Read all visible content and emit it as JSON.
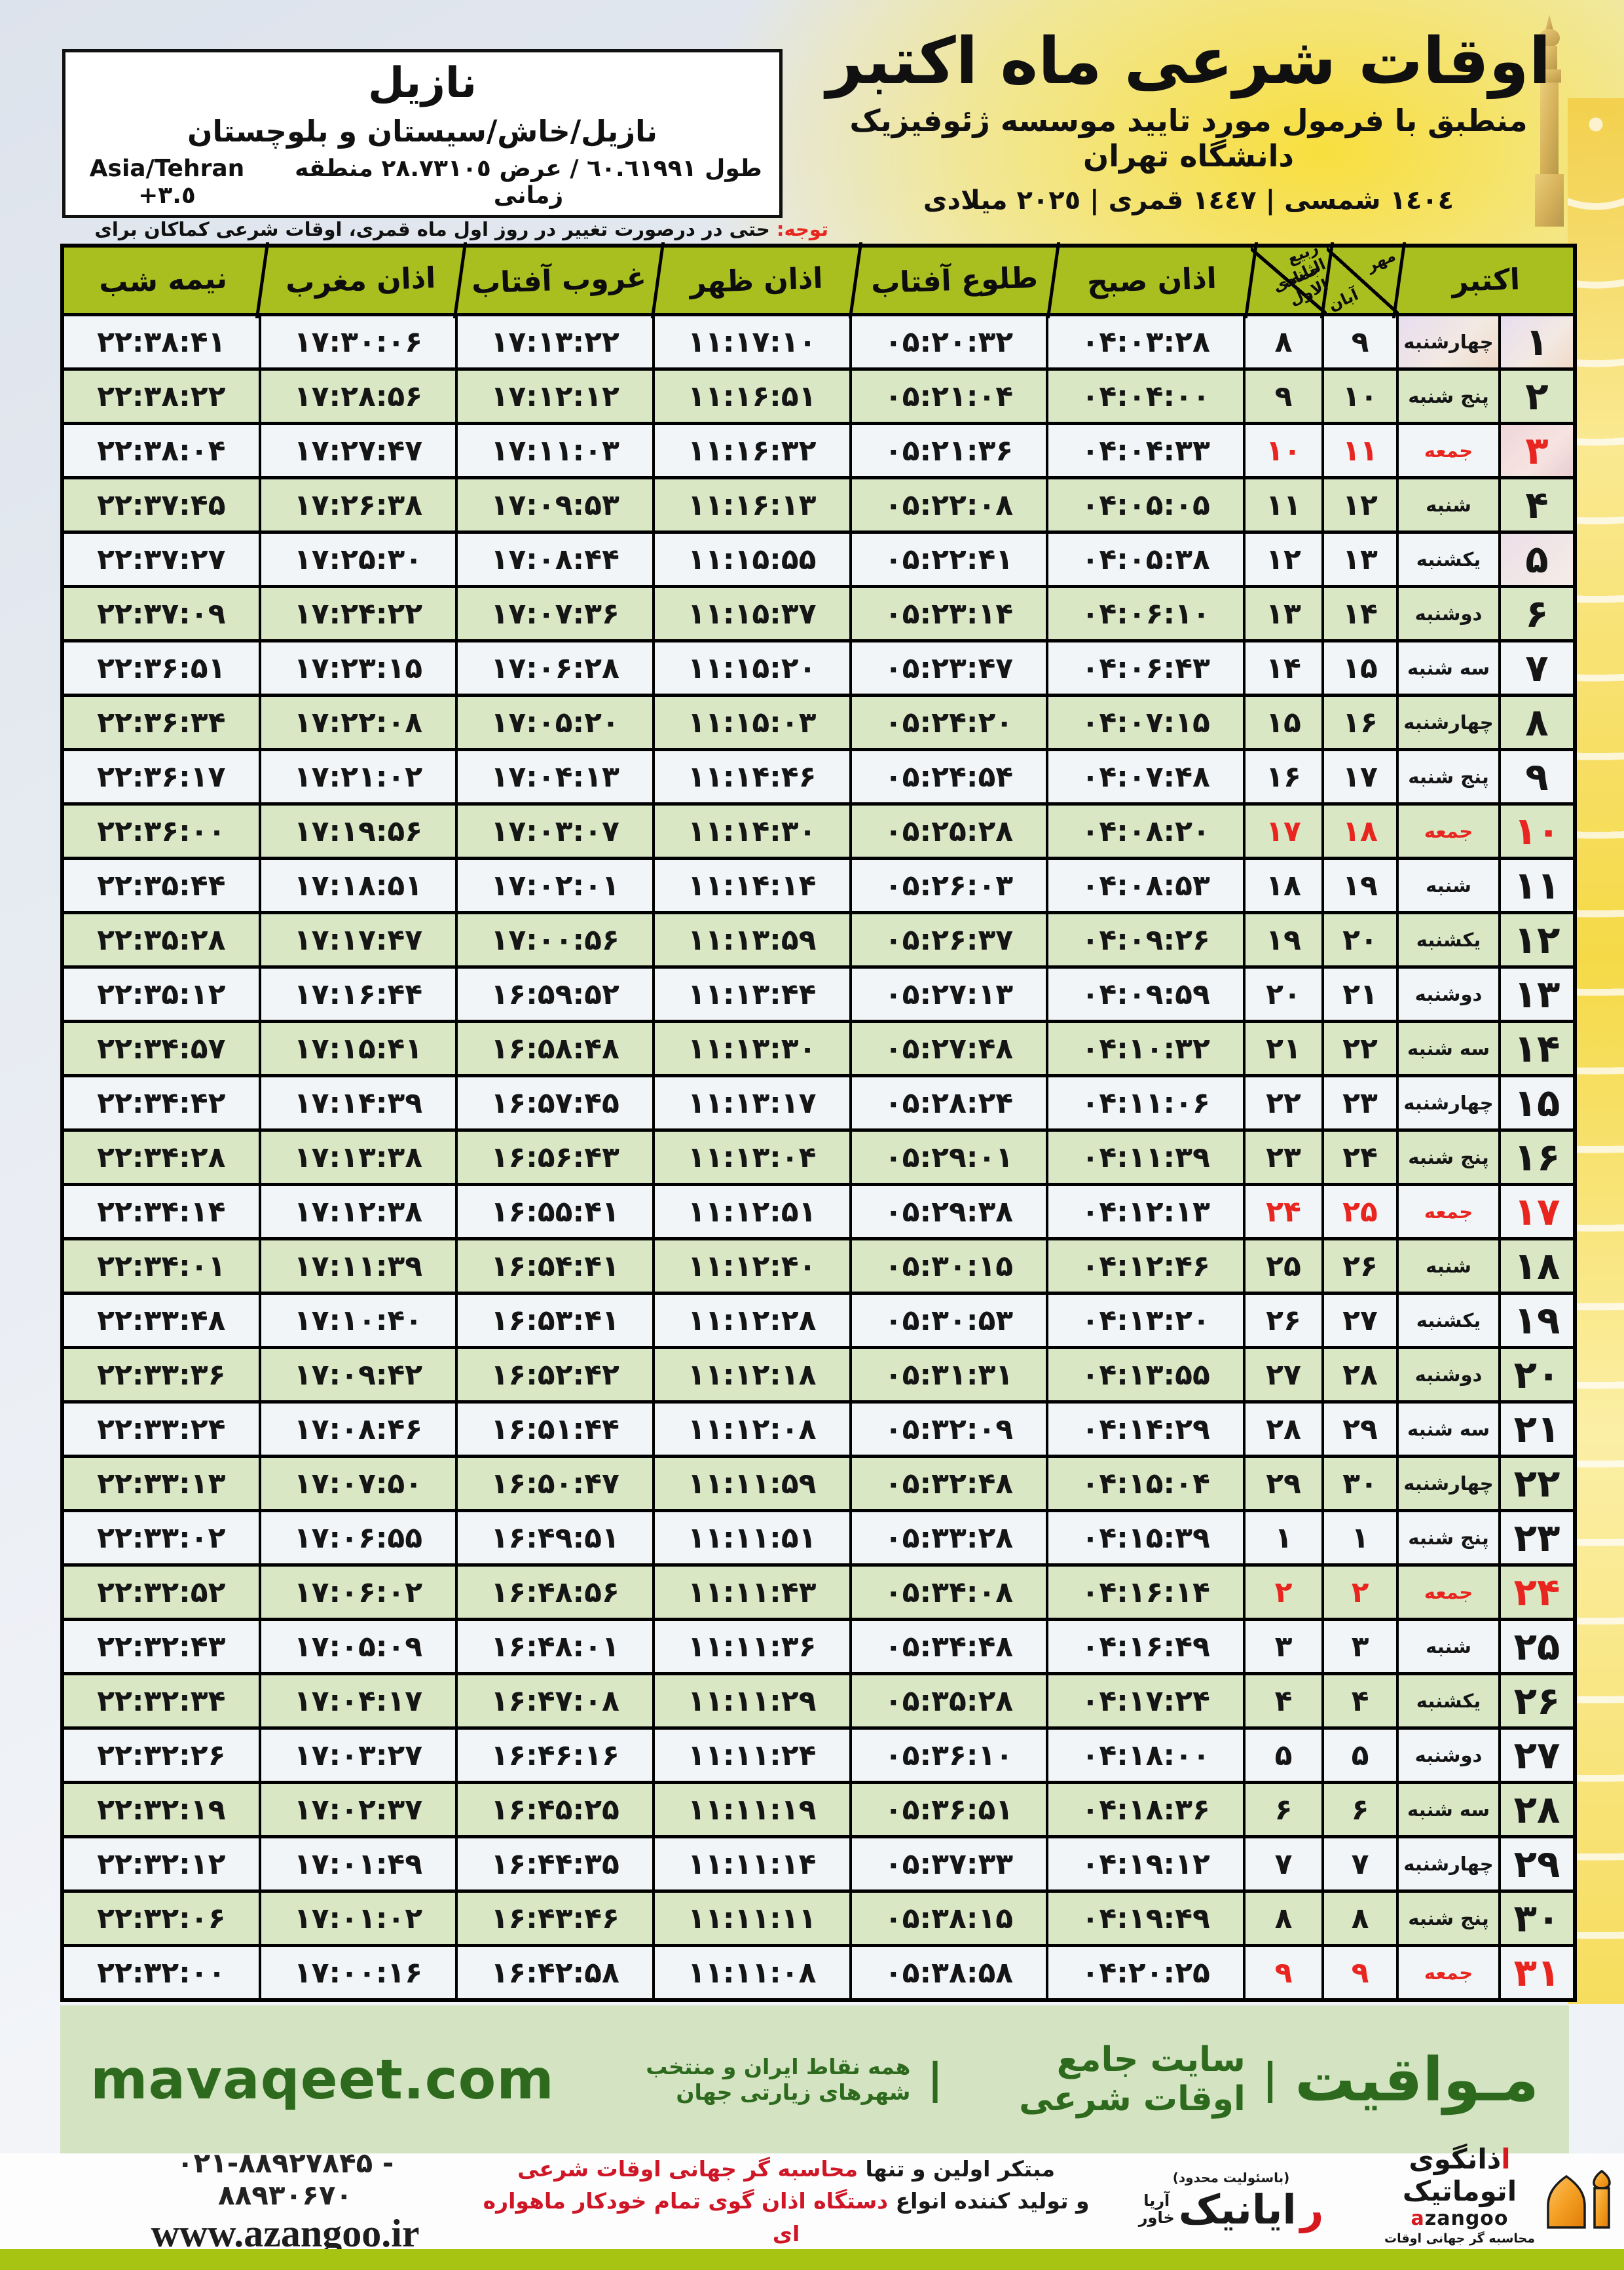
{
  "header": {
    "title": "اوقات شرعی ماه اکتبر",
    "subtitle": "منطبق با فرمول مورد تایید موسسه ژئوفیزیک دانشگاه تهران",
    "date_line": "١٤٠٤ شمسی | ١٤٤٧ قمری | ٢٠٢٥ میلادی"
  },
  "location_box": {
    "city": "نازیل",
    "region": "نازیل/خاش/سیستان و بلوچستان",
    "coords_fa": "طول ٦٠.٦١٩٩١ / عرض ٢٨.٧٣١٠٥ منطقه زمانی",
    "coords_tz": "Asia/Tehran +٣.٥"
  },
  "note": {
    "label": "توجه:",
    "text": " حتی در درصورت تغییر در روز اول ماه قمری، اوقات شرعی کماکان برای روزهای شمسی و میلادی معتبر است."
  },
  "table": {
    "headers": {
      "october": "اکتبر",
      "jalali_top": "مهر",
      "jalali_bottom": "آبان",
      "hijri_top": "ربیع الثانی",
      "hijri_bottom": "جمادی الاول",
      "fajr": "اذان صبح",
      "sunrise": "طلوع آفتاب",
      "dhuhr": "اذان ظهر",
      "sunset": "غروب آفتاب",
      "maghrib": "اذان مغرب",
      "midnight": "نیمه شب"
    },
    "rows": [
      {
        "day": "۱",
        "weekday": "چهارشنبه",
        "jalali": "۹",
        "hijri": "۸",
        "fajr": "۰۴:۰۳:۲۸",
        "sunrise": "۰۵:۲۰:۳۲",
        "dhuhr": "۱۱:۱۷:۱۰",
        "sunset": "۱۷:۱۳:۲۲",
        "maghrib": "۱۷:۳۰:۰۶",
        "midnight": "۲۲:۳۸:۴۱",
        "friday": false
      },
      {
        "day": "۲",
        "weekday": "پنج شنبه",
        "jalali": "۱۰",
        "hijri": "۹",
        "fajr": "۰۴:۰۴:۰۰",
        "sunrise": "۰۵:۲۱:۰۴",
        "dhuhr": "۱۱:۱۶:۵۱",
        "sunset": "۱۷:۱۲:۱۲",
        "maghrib": "۱۷:۲۸:۵۶",
        "midnight": "۲۲:۳۸:۲۲",
        "friday": false
      },
      {
        "day": "۳",
        "weekday": "جمعه",
        "jalali": "۱۱",
        "hijri": "۱۰",
        "fajr": "۰۴:۰۴:۳۳",
        "sunrise": "۰۵:۲۱:۳۶",
        "dhuhr": "۱۱:۱۶:۳۲",
        "sunset": "۱۷:۱۱:۰۳",
        "maghrib": "۱۷:۲۷:۴۷",
        "midnight": "۲۲:۳۸:۰۴",
        "friday": true
      },
      {
        "day": "۴",
        "weekday": "شنبه",
        "jalali": "۱۲",
        "hijri": "۱۱",
        "fajr": "۰۴:۰۵:۰۵",
        "sunrise": "۰۵:۲۲:۰۸",
        "dhuhr": "۱۱:۱۶:۱۳",
        "sunset": "۱۷:۰۹:۵۳",
        "maghrib": "۱۷:۲۶:۳۸",
        "midnight": "۲۲:۳۷:۴۵",
        "friday": false
      },
      {
        "day": "۵",
        "weekday": "یکشنبه",
        "jalali": "۱۳",
        "hijri": "۱۲",
        "fajr": "۰۴:۰۵:۳۸",
        "sunrise": "۰۵:۲۲:۴۱",
        "dhuhr": "۱۱:۱۵:۵۵",
        "sunset": "۱۷:۰۸:۴۴",
        "maghrib": "۱۷:۲۵:۳۰",
        "midnight": "۲۲:۳۷:۲۷",
        "friday": false
      },
      {
        "day": "۶",
        "weekday": "دوشنبه",
        "jalali": "۱۴",
        "hijri": "۱۳",
        "fajr": "۰۴:۰۶:۱۰",
        "sunrise": "۰۵:۲۳:۱۴",
        "dhuhr": "۱۱:۱۵:۳۷",
        "sunset": "۱۷:۰۷:۳۶",
        "maghrib": "۱۷:۲۴:۲۲",
        "midnight": "۲۲:۳۷:۰۹",
        "friday": false
      },
      {
        "day": "۷",
        "weekday": "سه شنبه",
        "jalali": "۱۵",
        "hijri": "۱۴",
        "fajr": "۰۴:۰۶:۴۳",
        "sunrise": "۰۵:۲۳:۴۷",
        "dhuhr": "۱۱:۱۵:۲۰",
        "sunset": "۱۷:۰۶:۲۸",
        "maghrib": "۱۷:۲۳:۱۵",
        "midnight": "۲۲:۳۶:۵۱",
        "friday": false
      },
      {
        "day": "۸",
        "weekday": "چهارشنبه",
        "jalali": "۱۶",
        "hijri": "۱۵",
        "fajr": "۰۴:۰۷:۱۵",
        "sunrise": "۰۵:۲۴:۲۰",
        "dhuhr": "۱۱:۱۵:۰۳",
        "sunset": "۱۷:۰۵:۲۰",
        "maghrib": "۱۷:۲۲:۰۸",
        "midnight": "۲۲:۳۶:۳۴",
        "friday": false
      },
      {
        "day": "۹",
        "weekday": "پنج شنبه",
        "jalali": "۱۷",
        "hijri": "۱۶",
        "fajr": "۰۴:۰۷:۴۸",
        "sunrise": "۰۵:۲۴:۵۴",
        "dhuhr": "۱۱:۱۴:۴۶",
        "sunset": "۱۷:۰۴:۱۳",
        "maghrib": "۱۷:۲۱:۰۲",
        "midnight": "۲۲:۳۶:۱۷",
        "friday": false
      },
      {
        "day": "۱۰",
        "weekday": "جمعه",
        "jalali": "۱۸",
        "hijri": "۱۷",
        "fajr": "۰۴:۰۸:۲۰",
        "sunrise": "۰۵:۲۵:۲۸",
        "dhuhr": "۱۱:۱۴:۳۰",
        "sunset": "۱۷:۰۳:۰۷",
        "maghrib": "۱۷:۱۹:۵۶",
        "midnight": "۲۲:۳۶:۰۰",
        "friday": true
      },
      {
        "day": "۱۱",
        "weekday": "شنبه",
        "jalali": "۱۹",
        "hijri": "۱۸",
        "fajr": "۰۴:۰۸:۵۳",
        "sunrise": "۰۵:۲۶:۰۳",
        "dhuhr": "۱۱:۱۴:۱۴",
        "sunset": "۱۷:۰۲:۰۱",
        "maghrib": "۱۷:۱۸:۵۱",
        "midnight": "۲۲:۳۵:۴۴",
        "friday": false
      },
      {
        "day": "۱۲",
        "weekday": "یکشنبه",
        "jalali": "۲۰",
        "hijri": "۱۹",
        "fajr": "۰۴:۰۹:۲۶",
        "sunrise": "۰۵:۲۶:۳۷",
        "dhuhr": "۱۱:۱۳:۵۹",
        "sunset": "۱۷:۰۰:۵۶",
        "maghrib": "۱۷:۱۷:۴۷",
        "midnight": "۲۲:۳۵:۲۸",
        "friday": false
      },
      {
        "day": "۱۳",
        "weekday": "دوشنبه",
        "jalali": "۲۱",
        "hijri": "۲۰",
        "fajr": "۰۴:۰۹:۵۹",
        "sunrise": "۰۵:۲۷:۱۳",
        "dhuhr": "۱۱:۱۳:۴۴",
        "sunset": "۱۶:۵۹:۵۲",
        "maghrib": "۱۷:۱۶:۴۴",
        "midnight": "۲۲:۳۵:۱۲",
        "friday": false
      },
      {
        "day": "۱۴",
        "weekday": "سه شنبه",
        "jalali": "۲۲",
        "hijri": "۲۱",
        "fajr": "۰۴:۱۰:۳۲",
        "sunrise": "۰۵:۲۷:۴۸",
        "dhuhr": "۱۱:۱۳:۳۰",
        "sunset": "۱۶:۵۸:۴۸",
        "maghrib": "۱۷:۱۵:۴۱",
        "midnight": "۲۲:۳۴:۵۷",
        "friday": false
      },
      {
        "day": "۱۵",
        "weekday": "چهارشنبه",
        "jalali": "۲۳",
        "hijri": "۲۲",
        "fajr": "۰۴:۱۱:۰۶",
        "sunrise": "۰۵:۲۸:۲۴",
        "dhuhr": "۱۱:۱۳:۱۷",
        "sunset": "۱۶:۵۷:۴۵",
        "maghrib": "۱۷:۱۴:۳۹",
        "midnight": "۲۲:۳۴:۴۲",
        "friday": false
      },
      {
        "day": "۱۶",
        "weekday": "پنج شنبه",
        "jalali": "۲۴",
        "hijri": "۲۳",
        "fajr": "۰۴:۱۱:۳۹",
        "sunrise": "۰۵:۲۹:۰۱",
        "dhuhr": "۱۱:۱۳:۰۴",
        "sunset": "۱۶:۵۶:۴۳",
        "maghrib": "۱۷:۱۳:۳۸",
        "midnight": "۲۲:۳۴:۲۸",
        "friday": false
      },
      {
        "day": "۱۷",
        "weekday": "جمعه",
        "jalali": "۲۵",
        "hijri": "۲۴",
        "fajr": "۰۴:۱۲:۱۳",
        "sunrise": "۰۵:۲۹:۳۸",
        "dhuhr": "۱۱:۱۲:۵۱",
        "sunset": "۱۶:۵۵:۴۱",
        "maghrib": "۱۷:۱۲:۳۸",
        "midnight": "۲۲:۳۴:۱۴",
        "friday": true
      },
      {
        "day": "۱۸",
        "weekday": "شنبه",
        "jalali": "۲۶",
        "hijri": "۲۵",
        "fajr": "۰۴:۱۲:۴۶",
        "sunrise": "۰۵:۳۰:۱۵",
        "dhuhr": "۱۱:۱۲:۴۰",
        "sunset": "۱۶:۵۴:۴۱",
        "maghrib": "۱۷:۱۱:۳۹",
        "midnight": "۲۲:۳۴:۰۱",
        "friday": false
      },
      {
        "day": "۱۹",
        "weekday": "یکشنبه",
        "jalali": "۲۷",
        "hijri": "۲۶",
        "fajr": "۰۴:۱۳:۲۰",
        "sunrise": "۰۵:۳۰:۵۳",
        "dhuhr": "۱۱:۱۲:۲۸",
        "sunset": "۱۶:۵۳:۴۱",
        "maghrib": "۱۷:۱۰:۴۰",
        "midnight": "۲۲:۳۳:۴۸",
        "friday": false
      },
      {
        "day": "۲۰",
        "weekday": "دوشنبه",
        "jalali": "۲۸",
        "hijri": "۲۷",
        "fajr": "۰۴:۱۳:۵۵",
        "sunrise": "۰۵:۳۱:۳۱",
        "dhuhr": "۱۱:۱۲:۱۸",
        "sunset": "۱۶:۵۲:۴۲",
        "maghrib": "۱۷:۰۹:۴۲",
        "midnight": "۲۲:۳۳:۳۶",
        "friday": false
      },
      {
        "day": "۲۱",
        "weekday": "سه شنبه",
        "jalali": "۲۹",
        "hijri": "۲۸",
        "fajr": "۰۴:۱۴:۲۹",
        "sunrise": "۰۵:۳۲:۰۹",
        "dhuhr": "۱۱:۱۲:۰۸",
        "sunset": "۱۶:۵۱:۴۴",
        "maghrib": "۱۷:۰۸:۴۶",
        "midnight": "۲۲:۳۳:۲۴",
        "friday": false
      },
      {
        "day": "۲۲",
        "weekday": "چهارشنبه",
        "jalali": "۳۰",
        "hijri": "۲۹",
        "fajr": "۰۴:۱۵:۰۴",
        "sunrise": "۰۵:۳۲:۴۸",
        "dhuhr": "۱۱:۱۱:۵۹",
        "sunset": "۱۶:۵۰:۴۷",
        "maghrib": "۱۷:۰۷:۵۰",
        "midnight": "۲۲:۳۳:۱۳",
        "friday": false
      },
      {
        "day": "۲۳",
        "weekday": "پنج شنبه",
        "jalali": "۱",
        "hijri": "۱",
        "fajr": "۰۴:۱۵:۳۹",
        "sunrise": "۰۵:۳۳:۲۸",
        "dhuhr": "۱۱:۱۱:۵۱",
        "sunset": "۱۶:۴۹:۵۱",
        "maghrib": "۱۷:۰۶:۵۵",
        "midnight": "۲۲:۳۳:۰۲",
        "friday": false
      },
      {
        "day": "۲۴",
        "weekday": "جمعه",
        "jalali": "۲",
        "hijri": "۲",
        "fajr": "۰۴:۱۶:۱۴",
        "sunrise": "۰۵:۳۴:۰۸",
        "dhuhr": "۱۱:۱۱:۴۳",
        "sunset": "۱۶:۴۸:۵۶",
        "maghrib": "۱۷:۰۶:۰۲",
        "midnight": "۲۲:۳۲:۵۲",
        "friday": true
      },
      {
        "day": "۲۵",
        "weekday": "شنبه",
        "jalali": "۳",
        "hijri": "۳",
        "fajr": "۰۴:۱۶:۴۹",
        "sunrise": "۰۵:۳۴:۴۸",
        "dhuhr": "۱۱:۱۱:۳۶",
        "sunset": "۱۶:۴۸:۰۱",
        "maghrib": "۱۷:۰۵:۰۹",
        "midnight": "۲۲:۳۲:۴۳",
        "friday": false
      },
      {
        "day": "۲۶",
        "weekday": "یکشنبه",
        "jalali": "۴",
        "hijri": "۴",
        "fajr": "۰۴:۱۷:۲۴",
        "sunrise": "۰۵:۳۵:۲۸",
        "dhuhr": "۱۱:۱۱:۲۹",
        "sunset": "۱۶:۴۷:۰۸",
        "maghrib": "۱۷:۰۴:۱۷",
        "midnight": "۲۲:۳۲:۳۴",
        "friday": false
      },
      {
        "day": "۲۷",
        "weekday": "دوشنبه",
        "jalali": "۵",
        "hijri": "۵",
        "fajr": "۰۴:۱۸:۰۰",
        "sunrise": "۰۵:۳۶:۱۰",
        "dhuhr": "۱۱:۱۱:۲۴",
        "sunset": "۱۶:۴۶:۱۶",
        "maghrib": "۱۷:۰۳:۲۷",
        "midnight": "۲۲:۳۲:۲۶",
        "friday": false
      },
      {
        "day": "۲۸",
        "weekday": "سه شنبه",
        "jalali": "۶",
        "hijri": "۶",
        "fajr": "۰۴:۱۸:۳۶",
        "sunrise": "۰۵:۳۶:۵۱",
        "dhuhr": "۱۱:۱۱:۱۹",
        "sunset": "۱۶:۴۵:۲۵",
        "maghrib": "۱۷:۰۲:۳۷",
        "midnight": "۲۲:۳۲:۱۹",
        "friday": false
      },
      {
        "day": "۲۹",
        "weekday": "چهارشنبه",
        "jalali": "۷",
        "hijri": "۷",
        "fajr": "۰۴:۱۹:۱۲",
        "sunrise": "۰۵:۳۷:۳۳",
        "dhuhr": "۱۱:۱۱:۱۴",
        "sunset": "۱۶:۴۴:۳۵",
        "maghrib": "۱۷:۰۱:۴۹",
        "midnight": "۲۲:۳۲:۱۲",
        "friday": false
      },
      {
        "day": "۳۰",
        "weekday": "پنج شنبه",
        "jalali": "۸",
        "hijri": "۸",
        "fajr": "۰۴:۱۹:۴۹",
        "sunrise": "۰۵:۳۸:۱۵",
        "dhuhr": "۱۱:۱۱:۱۱",
        "sunset": "۱۶:۴۳:۴۶",
        "maghrib": "۱۷:۰۱:۰۲",
        "midnight": "۲۲:۳۲:۰۶",
        "friday": false
      },
      {
        "day": "۳۱",
        "weekday": "جمعه",
        "jalali": "۹",
        "hijri": "۹",
        "fajr": "۰۴:۲۰:۲۵",
        "sunrise": "۰۵:۳۸:۵۸",
        "dhuhr": "۱۱:۱۱:۰۸",
        "sunset": "۱۶:۴۲:۵۸",
        "maghrib": "۱۷:۰۰:۱۶",
        "midnight": "۲۲:۳۲:۰۰",
        "friday": true
      }
    ]
  },
  "site_band": {
    "brand": "مـواقیت",
    "separator": "|",
    "tagline_bold": "سایت جامع اوقات شرعی",
    "tagline_rest": "همه نقاط ایران و منتخب شهرهای زیارتی جهان",
    "site": "mavaqeet.com"
  },
  "bottom": {
    "phone": "۰۲۱-۸۸۹۲۷۸۴۵ - ۸۸۹۳۰۶۷۰",
    "website": "www.azangoo.ir",
    "promo_line1_black": "مبتکر اولین و تنها ",
    "promo_line1_red": "محاسبه گر جهانی اوقات شرعی",
    "promo_line2_black": "و تولید کننده انواع ",
    "promo_line2_red": "دستگاه اذان گوی تمام خودکار ماهواره ای",
    "rayanik": {
      "ltd_note": "(باسئولیت محدود)",
      "name_initial": "ر",
      "name_rest": "ایانیک",
      "stack_top": "آریا",
      "stack_bottom": "خاور"
    },
    "azangoo": {
      "fa_initial": "ا",
      "fa_rest": "ذانگوی اتوماتیک",
      "tagline": "محاسبه گر جهانی اوقات شرعی",
      "latin_a": "a",
      "latin_rest": "zangoo"
    }
  },
  "colors": {
    "header_green": "#a9bf1f",
    "row_green": "#d9e7c5",
    "row_white": "#f1f5f8",
    "friday_red": "#e8251f",
    "band_bg": "#d4e4c2",
    "band_text": "#2e6a1e",
    "bottom_bar": "#a6c411",
    "azangoo_orange": "#f5a226"
  }
}
